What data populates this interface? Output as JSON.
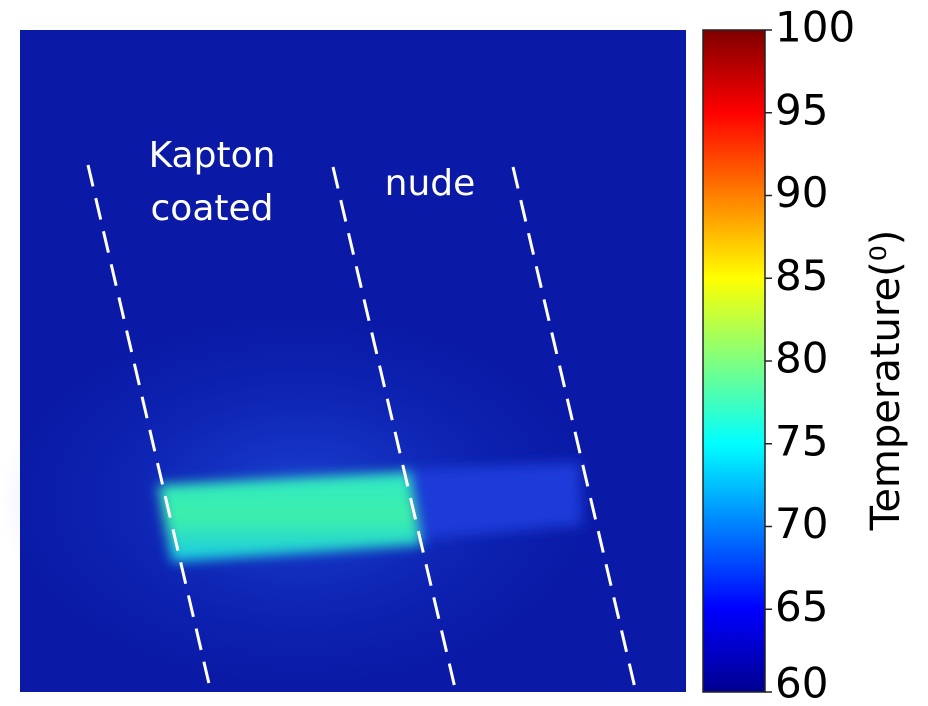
{
  "image": {
    "annotations": {
      "kapton": [
        "Kapton",
        "coated"
      ],
      "nude": "nude"
    }
  },
  "colorbar": {
    "label": "Temperature(⁰)",
    "lim": [
      60,
      100
    ],
    "ticks": [
      60,
      65,
      70,
      75,
      80,
      85,
      90,
      95,
      100
    ],
    "colormap": "jet"
  }
}
